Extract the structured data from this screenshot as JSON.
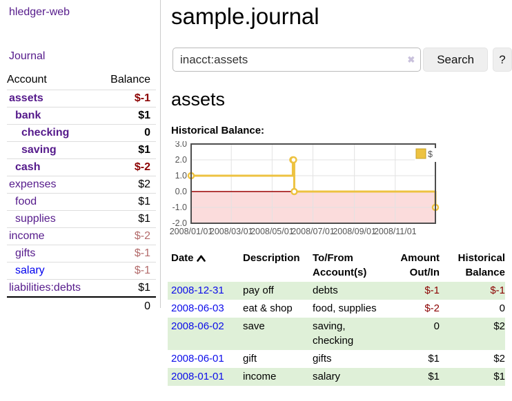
{
  "app": {
    "brand": "hledger-web",
    "nav_journal": "Journal"
  },
  "header": {
    "title": "sample.journal"
  },
  "search": {
    "value": "inacct:assets",
    "button_label": "Search",
    "help_label": "?"
  },
  "icons": {
    "clear_search": "✖"
  },
  "sidebar": {
    "columns": {
      "account": "Account",
      "balance": "Balance"
    },
    "accounts": [
      {
        "name": "assets",
        "balance": "$-1",
        "indent": 0,
        "bold": true
      },
      {
        "name": "bank",
        "balance": "$1",
        "indent": 1,
        "bold": true
      },
      {
        "name": "checking",
        "balance": "0",
        "indent": 2,
        "bold": true
      },
      {
        "name": "saving",
        "balance": "$1",
        "indent": 2,
        "bold": true
      },
      {
        "name": "cash",
        "balance": "$-2",
        "indent": 1,
        "bold": true
      },
      {
        "name": "expenses",
        "balance": "$2",
        "indent": 0,
        "bold": false
      },
      {
        "name": "food",
        "balance": "$1",
        "indent": 1,
        "bold": false
      },
      {
        "name": "supplies",
        "balance": "$1",
        "indent": 1,
        "bold": false
      },
      {
        "name": "income",
        "balance": "$-2",
        "indent": 0,
        "bold": false
      },
      {
        "name": "gifts",
        "balance": "$-1",
        "indent": 1,
        "bold": false
      },
      {
        "name": "salary",
        "balance": "$-1",
        "indent": 1,
        "bold": false,
        "unvisited": true
      },
      {
        "name": "liabilities:debts",
        "balance": "$1",
        "indent": 0,
        "bold": false
      }
    ],
    "total": "0"
  },
  "account_page": {
    "title": "assets",
    "chart_section_label": "Historical Balance:"
  },
  "chart_data": {
    "type": "line",
    "step": true,
    "title": "Historical Balance:",
    "series": [
      {
        "name": "$",
        "color": "#EDC240",
        "points": [
          {
            "date": "2008-01-01",
            "value": 1
          },
          {
            "date": "2008-06-01",
            "value": 2
          },
          {
            "date": "2008-06-02",
            "value": 2
          },
          {
            "date": "2008-06-03",
            "value": 0
          },
          {
            "date": "2008-12-31",
            "value": -1
          }
        ]
      }
    ],
    "x_ticks": [
      "2008/01/01",
      "2008/03/01",
      "2008/05/01",
      "2008/07/01",
      "2008/09/01",
      "2008/11/01"
    ],
    "y_ticks": [
      3.0,
      2.0,
      1.0,
      0.0,
      -1.0,
      -2.0
    ],
    "ylim": [
      -2,
      3
    ],
    "x_range": [
      "2008-01-01",
      "2008-12-31"
    ],
    "grid": true,
    "legend_position": "top-right",
    "negative_region_color": "#fbdcdc",
    "zero_line_color": "#990000"
  },
  "register": {
    "columns": [
      "Date",
      "Description",
      "To/From Account(s)",
      "Amount Out/In",
      "Historical Balance"
    ],
    "rows": [
      {
        "date": "2008-12-31",
        "description": "pay off",
        "accounts": "debts",
        "amount": "$-1",
        "balance": "$-1"
      },
      {
        "date": "2008-06-03",
        "description": "eat & shop",
        "accounts": "food, supplies",
        "amount": "$-2",
        "balance": "0"
      },
      {
        "date": "2008-06-02",
        "description": "save",
        "accounts": "saving, checking",
        "amount": "0",
        "balance": "$2"
      },
      {
        "date": "2008-06-01",
        "description": "gift",
        "accounts": "gifts",
        "amount": "$1",
        "balance": "$2"
      },
      {
        "date": "2008-01-01",
        "description": "income",
        "accounts": "salary",
        "amount": "$1",
        "balance": "$1"
      }
    ]
  },
  "colors": {
    "accent_series": "#EDC240",
    "link_visited_purple": "#551a8b",
    "link_blue": "#0000ee",
    "negative_strong": "#8b0000",
    "negative_muted": "#b36b6b",
    "row_green": "#dff0d8",
    "negative_region": "#fbdcdc",
    "zero_line": "#990000"
  }
}
